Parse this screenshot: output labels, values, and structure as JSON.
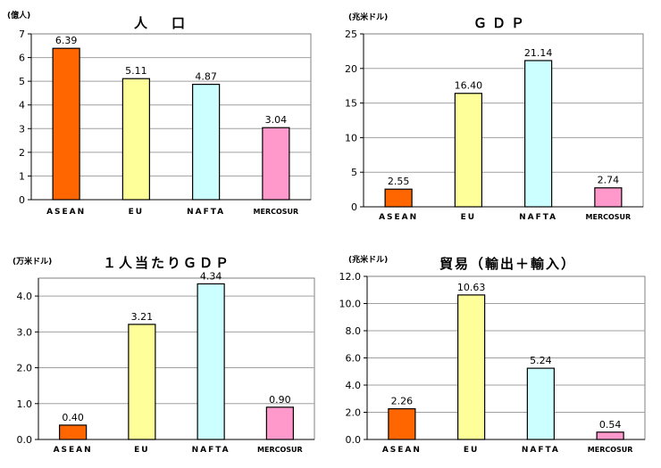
{
  "chart_data": [
    {
      "type": "bar",
      "title": "人　口",
      "unit": "(億人)",
      "categories": [
        "ASEAN",
        "EU",
        "NAFTA",
        "MERCOSUR"
      ],
      "values": [
        6.39,
        5.11,
        4.87,
        3.04
      ],
      "value_labels": [
        "6.39",
        "5.11",
        "4.87",
        "3.04"
      ],
      "yticks": [
        "0",
        "1",
        "2",
        "3",
        "4",
        "5",
        "6",
        "7"
      ],
      "ylim": [
        0,
        7
      ],
      "colors": [
        "#ff6600",
        "#ffff99",
        "#ccffff",
        "#ff99cc"
      ],
      "grid": true
    },
    {
      "type": "bar",
      "title": "ＧＤＰ",
      "unit": "(兆米ドル)",
      "categories": [
        "ASEAN",
        "EU",
        "NAFTA",
        "MERCOSUR"
      ],
      "values": [
        2.55,
        16.4,
        21.14,
        2.74
      ],
      "value_labels": [
        "2.55",
        "16.40",
        "21.14",
        "2.74"
      ],
      "yticks": [
        "0",
        "5",
        "10",
        "15",
        "20",
        "25"
      ],
      "ylim": [
        0,
        25
      ],
      "colors": [
        "#ff6600",
        "#ffff99",
        "#ccffff",
        "#ff99cc"
      ],
      "grid": true
    },
    {
      "type": "bar",
      "title": "１人当たりＧＤＰ",
      "unit": "(万米ドル)",
      "categories": [
        "ASEAN",
        "EU",
        "NAFTA",
        "MERCOSUR"
      ],
      "values": [
        0.4,
        3.21,
        4.34,
        0.9
      ],
      "value_labels": [
        "0.40",
        "3.21",
        "4.34",
        "0.90"
      ],
      "yticks": [
        "0.0",
        "1.0",
        "2.0",
        "3.0",
        "4.0"
      ],
      "ylim": [
        0,
        4.5
      ],
      "colors": [
        "#ff6600",
        "#ffff99",
        "#ccffff",
        "#ff99cc"
      ],
      "grid": true
    },
    {
      "type": "bar",
      "title": "貿易（輸出＋輸入）",
      "unit": "(兆米ドル)",
      "categories": [
        "ASEAN",
        "EU",
        "NAFTA",
        "MERCOSUR"
      ],
      "values": [
        2.26,
        10.63,
        5.24,
        0.54
      ],
      "value_labels": [
        "2.26",
        "10.63",
        "5.24",
        "0.54"
      ],
      "yticks": [
        "0.0",
        "2.0",
        "4.0",
        "6.0",
        "8.0",
        "10.0",
        "12.0"
      ],
      "ylim": [
        0,
        12
      ],
      "colors": [
        "#ff6600",
        "#ffff99",
        "#ccffff",
        "#ff99cc"
      ],
      "grid": true
    }
  ]
}
